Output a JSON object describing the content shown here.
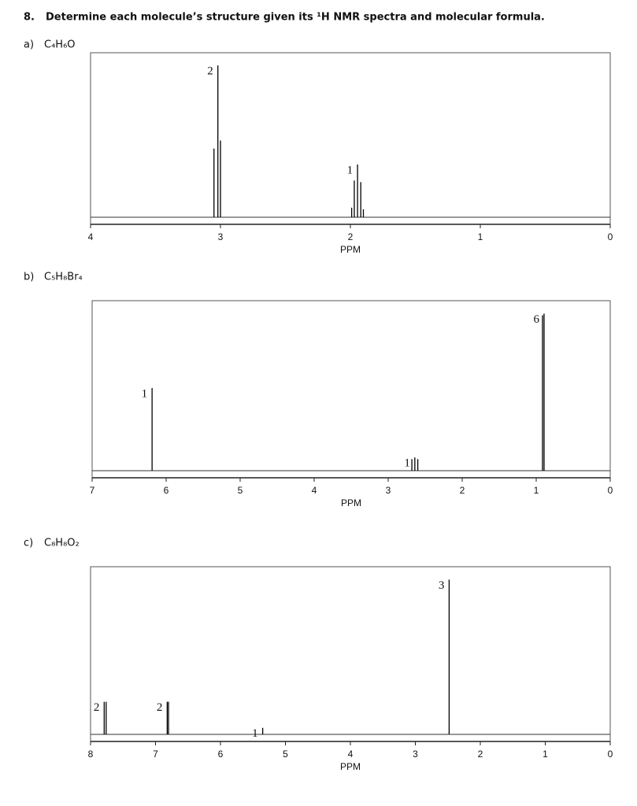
{
  "question": {
    "number": "8.",
    "text": "Determine each molecule’s structure given its ¹H NMR spectra and molecular formula."
  },
  "chart_data": [
    {
      "type": "nmr",
      "part": "a)",
      "title": "C₄H₆O",
      "xlabel": "PPM",
      "xlim": [
        4,
        0
      ],
      "xticks": [
        4,
        3,
        2,
        1,
        0
      ],
      "ylim": [
        0,
        100
      ],
      "color": "#000000",
      "signals": [
        {
          "integration": 2,
          "x": [
            3.05,
            3.02,
            3.0
          ],
          "values": [
            43,
            95,
            48
          ]
        },
        {
          "integration": 1,
          "x": [
            1.99,
            1.97,
            1.945,
            1.92,
            1.9
          ],
          "values": [
            6,
            23,
            33,
            22,
            5
          ]
        }
      ]
    },
    {
      "type": "nmr",
      "part": "b)",
      "title": "C₅H₈Br₄",
      "xlabel": "PPM",
      "xlim": [
        7,
        0
      ],
      "xticks": [
        7,
        6,
        5,
        4,
        3,
        2,
        1,
        0
      ],
      "ylim": [
        0,
        100
      ],
      "color": "#000000",
      "signals": [
        {
          "integration": 1,
          "x": [
            6.19
          ],
          "values": [
            50
          ]
        },
        {
          "integration": 1,
          "x": [
            2.68,
            2.64,
            2.6
          ],
          "values": [
            7,
            8,
            7
          ]
        },
        {
          "integration": 6,
          "x": [
            0.915,
            0.894
          ],
          "values": [
            94,
            95
          ]
        }
      ]
    },
    {
      "type": "nmr",
      "part": "c)",
      "title": "C₈H₈O₂",
      "xlabel": "PPM",
      "xlim": [
        8,
        0
      ],
      "xticks": [
        8,
        7,
        6,
        5,
        4,
        3,
        2,
        1,
        0
      ],
      "ylim": [
        0,
        100
      ],
      "color": "#000000",
      "signals": [
        {
          "integration": 2,
          "x": [
            7.79,
            7.76
          ],
          "values": [
            20,
            20
          ]
        },
        {
          "integration": 2,
          "x": [
            6.82,
            6.8
          ],
          "values": [
            20,
            20
          ]
        },
        {
          "integration": 1,
          "x": [
            5.35
          ],
          "values": [
            4
          ]
        },
        {
          "integration": 3,
          "x": [
            2.48
          ],
          "values": [
            95
          ]
        }
      ]
    }
  ]
}
